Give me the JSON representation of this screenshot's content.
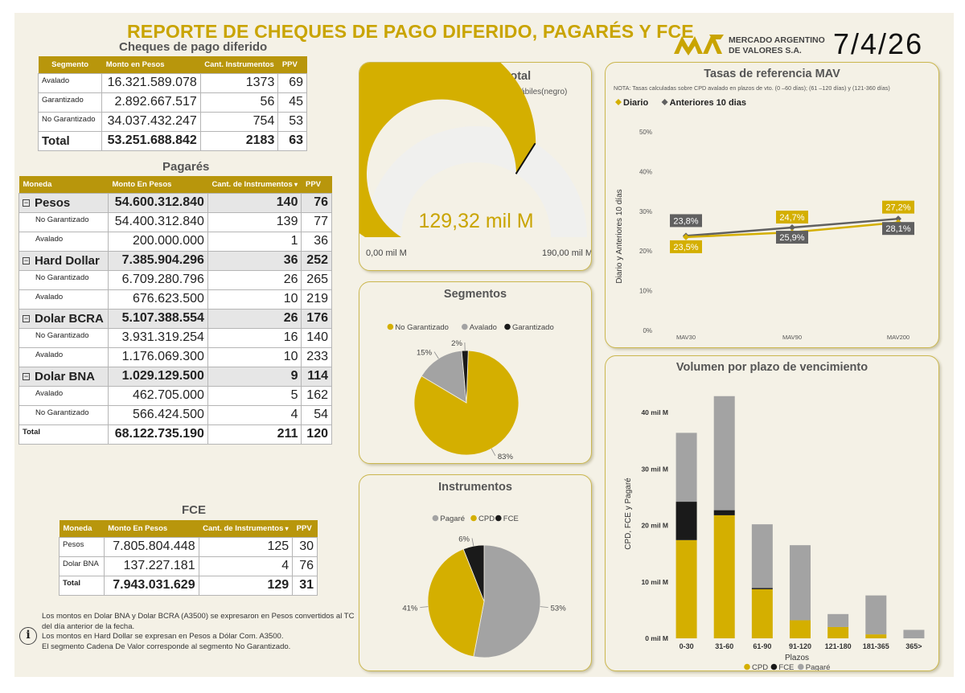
{
  "header": {
    "title": "REPORTE DE CHEQUES DE PAGO DIFERIDO, PAGARÉS Y FCE",
    "logo_line1": "MERCADO ARGENTINO",
    "logo_line2": "DE VALORES S.A.",
    "date": "7/4/26",
    "brand_color": "#c9a400"
  },
  "cheques": {
    "title": "Cheques de pago diferido",
    "columns": [
      "Segmento",
      "Monto en Pesos",
      "Cant. Instrumentos",
      "PPV"
    ],
    "rows": [
      {
        "label": "Avalado",
        "monto": "16.321.589.078",
        "cant": "1373",
        "ppv": "69"
      },
      {
        "label": "Garantizado",
        "monto": "2.892.667.517",
        "cant": "56",
        "ppv": "45"
      },
      {
        "label": "No Garantizado",
        "monto": "34.037.432.247",
        "cant": "754",
        "ppv": "53"
      }
    ],
    "total": {
      "label": "Total",
      "monto": "53.251.688.842",
      "cant": "2183",
      "ppv": "63"
    }
  },
  "pagares": {
    "title": "Pagarés",
    "columns": [
      "Moneda",
      "Monto En Pesos",
      "Cant. de Instrumentos",
      "PPV"
    ],
    "groups": [
      {
        "label": "Pesos",
        "monto": "54.600.312.840",
        "cant": "140",
        "ppv": "76",
        "rows": [
          {
            "label": "No Garantizado",
            "monto": "54.400.312.840",
            "cant": "139",
            "ppv": "77"
          },
          {
            "label": "Avalado",
            "monto": "200.000.000",
            "cant": "1",
            "ppv": "36"
          }
        ]
      },
      {
        "label": "Hard Dollar",
        "monto": "7.385.904.296",
        "cant": "36",
        "ppv": "252",
        "rows": [
          {
            "label": "No Garantizado",
            "monto": "6.709.280.796",
            "cant": "26",
            "ppv": "265"
          },
          {
            "label": "Avalado",
            "monto": "676.623.500",
            "cant": "10",
            "ppv": "219"
          }
        ]
      },
      {
        "label": "Dolar BCRA",
        "monto": "5.107.388.554",
        "cant": "26",
        "ppv": "176",
        "rows": [
          {
            "label": "No Garantizado",
            "monto": "3.931.319.254",
            "cant": "16",
            "ppv": "140"
          },
          {
            "label": "Avalado",
            "monto": "1.176.069.300",
            "cant": "10",
            "ppv": "233"
          }
        ]
      },
      {
        "label": "Dolar BNA",
        "monto": "1.029.129.500",
        "cant": "9",
        "ppv": "114",
        "rows": [
          {
            "label": "Avalado",
            "monto": "462.705.000",
            "cant": "5",
            "ppv": "162"
          },
          {
            "label": "No Garantizado",
            "monto": "566.424.500",
            "cant": "4",
            "ppv": "54"
          }
        ]
      }
    ],
    "total": {
      "label": "Total",
      "monto": "68.122.735.190",
      "cant": "211",
      "ppv": "120"
    }
  },
  "fce": {
    "title": "FCE",
    "columns": [
      "Moneda",
      "Monto En Pesos",
      "Cant. de Instrumentos",
      "PPV"
    ],
    "rows": [
      {
        "label": "Pesos",
        "monto": "7.805.804.448",
        "cant": "125",
        "ppv": "30"
      },
      {
        "label": "Dolar BNA",
        "monto": "137.227.181",
        "cant": "4",
        "ppv": "76"
      }
    ],
    "total": {
      "label": "Total",
      "monto": "7.943.031.629",
      "cant": "129",
      "ppv": "31"
    }
  },
  "notes": [
    "Los montos en Dolar BNA y Dolar BCRA (A3500) se expresaron en Pesos convertidos al TC del día anterior de la fecha.",
    "Los montos en Hard Dollar se expresan en Pesos a Dólar Com. A3500.",
    "El segmento Cadena De Valor corresponde al segmento No Garantizado."
  ],
  "info_icon": "info-icon",
  "colors": {
    "gold": "#d4af00",
    "gray": "#a3a3a3",
    "black": "#1a1a1a",
    "dark_gray": "#606060"
  },
  "chart_data": [
    {
      "type": "gauge",
      "title": "Volumen diario total",
      "subtitle": "Diario(dorado) vs Anteriores 10 días hábiles(negro)",
      "value": 129.32,
      "value_label": "129,32 mil M",
      "reference": 129.0,
      "min": 0,
      "max": 190,
      "min_label": "0,00 mil M",
      "max_label": "190,00 mil M"
    },
    {
      "type": "pie",
      "title": "Segmentos",
      "legend_position": "top",
      "slices": [
        {
          "name": "No Garantizado",
          "value": 83,
          "label": "83%",
          "color": "#d4af00"
        },
        {
          "name": "Avalado",
          "value": 15,
          "label": "15%",
          "color": "#a3a3a3"
        },
        {
          "name": "Garantizado",
          "value": 2,
          "label": "2%",
          "color": "#1a1a1a"
        }
      ]
    },
    {
      "type": "pie",
      "title": "Instrumentos",
      "legend_position": "top",
      "slices": [
        {
          "name": "Pagaré",
          "value": 53,
          "label": "53%",
          "color": "#a3a3a3"
        },
        {
          "name": "CPD",
          "value": 41,
          "label": "41%",
          "color": "#d4af00"
        },
        {
          "name": "FCE",
          "value": 6,
          "label": "6%",
          "color": "#1a1a1a"
        }
      ]
    },
    {
      "type": "line",
      "title": "Tasas de referencia MAV",
      "note": "NOTA: Tasas calculadas sobre CPD avalado en plazos de vto. (0 –60 días); (61 –120 días) y (121-360 días)",
      "legend_position": "top-left",
      "ylabel": "Diario y Anteriores 10 días",
      "categories": [
        "MAV30",
        "MAV90",
        "MAV200"
      ],
      "ylim": [
        0,
        50
      ],
      "y_ticks": [
        0,
        10,
        20,
        30,
        40,
        50
      ],
      "y_tick_labels": [
        "0%",
        "10%",
        "20%",
        "30%",
        "40%",
        "50%"
      ],
      "series": [
        {
          "name": "Diario",
          "values": [
            23.5,
            24.7,
            27.2
          ],
          "labels": [
            "23,5%",
            "24,7%",
            "27,2%"
          ],
          "color": "#d4af00"
        },
        {
          "name": "Anteriores 10 dias",
          "values": [
            23.8,
            25.9,
            28.1
          ],
          "labels": [
            "23,8%",
            "25,9%",
            "28,1%"
          ],
          "color": "#606060"
        }
      ]
    },
    {
      "type": "bar",
      "stacked": true,
      "title": "Volumen por plazo de vencimiento",
      "xlabel": "Plazos",
      "ylabel": "CPD, FCE y Pagaré",
      "legend_position": "bottom",
      "categories": [
        "0-30",
        "31-60",
        "61-90",
        "91-120",
        "121-180",
        "181-365",
        "365>"
      ],
      "ylim": [
        0,
        45
      ],
      "y_ticks": [
        0,
        10,
        20,
        30,
        40
      ],
      "y_tick_labels": [
        "0 mil M",
        "10 mil M",
        "20 mil M",
        "30 mil M",
        "40 mil M"
      ],
      "series": [
        {
          "name": "CPD",
          "values": [
            17.4,
            21.8,
            8.7,
            3.2,
            2.0,
            0.7,
            0.0
          ],
          "color": "#d4af00"
        },
        {
          "name": "FCE",
          "values": [
            6.8,
            0.9,
            0.2,
            0.0,
            0.0,
            0.0,
            0.0
          ],
          "color": "#1a1a1a"
        },
        {
          "name": "Pagaré",
          "values": [
            12.2,
            20.2,
            11.3,
            13.3,
            2.3,
            6.9,
            1.5
          ],
          "color": "#a3a3a3"
        }
      ]
    }
  ]
}
